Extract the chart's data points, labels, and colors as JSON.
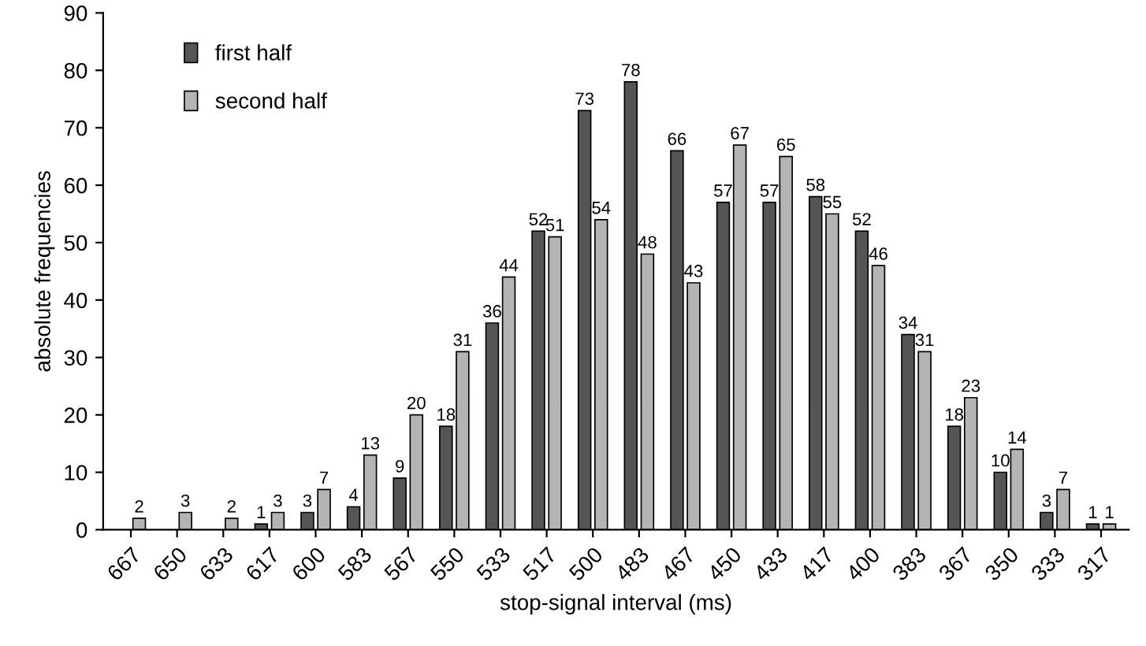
{
  "chart_data": {
    "type": "bar",
    "xlabel": "stop-signal interval (ms)",
    "ylabel": "absolute frequencies",
    "categories": [
      "667",
      "650",
      "633",
      "617",
      "600",
      "583",
      "567",
      "550",
      "533",
      "517",
      "500",
      "483",
      "467",
      "450",
      "433",
      "417",
      "400",
      "383",
      "367",
      "350",
      "333",
      "317"
    ],
    "series": [
      {
        "name": "first half",
        "color": "#555555",
        "values": [
          null,
          null,
          null,
          1,
          3,
          4,
          9,
          18,
          36,
          52,
          73,
          78,
          66,
          57,
          57,
          58,
          52,
          34,
          18,
          10,
          3,
          1
        ]
      },
      {
        "name": "second half",
        "color": "#b4b4b4",
        "values": [
          2,
          3,
          2,
          3,
          7,
          13,
          20,
          31,
          44,
          51,
          54,
          48,
          43,
          67,
          65,
          55,
          46,
          31,
          23,
          14,
          7,
          1
        ]
      }
    ],
    "ylim": [
      0,
      90
    ],
    "yticks": [
      0,
      10,
      20,
      30,
      40,
      50,
      60,
      70,
      80,
      90
    ],
    "grid": false,
    "legend": "top left",
    "data_labels": true
  }
}
